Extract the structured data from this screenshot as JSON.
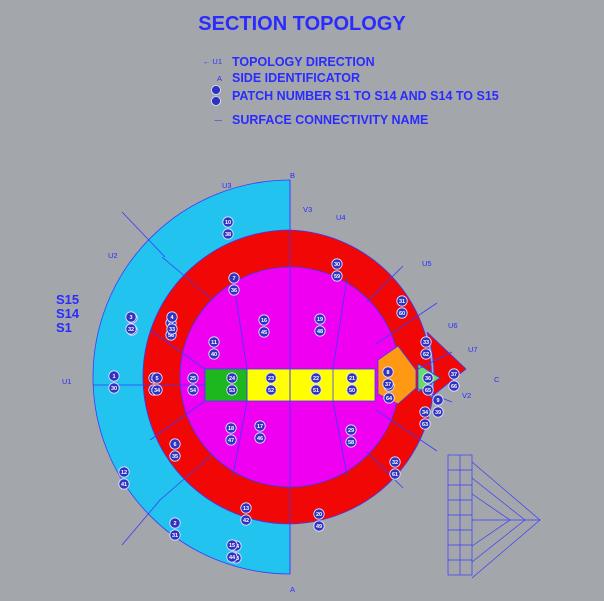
{
  "title": "SECTION TOPOLOGY",
  "legend": [
    {
      "symbol": "← U1",
      "text": "TOPOLOGY DIRECTION"
    },
    {
      "symbol": "A",
      "text": "SIDE IDENTIFICATOR"
    },
    {
      "symbol": "①",
      "text": "PATCH NUMBER S1 TO S14 AND S14 TO S15"
    },
    {
      "symbol": "—",
      "text": "SURFACE CONNECTIVITY NAME"
    }
  ],
  "surfaces": [
    "S15",
    "S14",
    "S1"
  ],
  "sides": {
    "top": "B",
    "bottom": "A",
    "right": "C"
  },
  "directions": [
    "U1",
    "U2",
    "U3",
    "V3",
    "U4",
    "U5",
    "U6",
    "U7",
    "V2"
  ],
  "colors": {
    "background": "#a3a7ab",
    "outer_ring": "#23c3ef",
    "middle_ring": "#f20707",
    "core": "#f000f0",
    "center_yellow": "#ffff00",
    "center_green": "#1db81d",
    "wedge_orange": "#ff9914",
    "wedge_tip": "#66dd66",
    "lines": "#3a3aff"
  },
  "patches": [
    {
      "id": "p1",
      "top": "1",
      "bot": "30"
    },
    {
      "id": "p2",
      "top": "10",
      "bot": "38"
    },
    {
      "id": "p3",
      "top": "11",
      "bot": "40"
    },
    {
      "id": "p4",
      "top": "12",
      "bot": "41"
    },
    {
      "id": "p5",
      "top": "13",
      "bot": "42"
    },
    {
      "id": "p6",
      "top": "14",
      "bot": "43"
    },
    {
      "id": "p7",
      "top": "15",
      "bot": "44"
    },
    {
      "id": "p8",
      "top": "16",
      "bot": "45"
    },
    {
      "id": "p9",
      "top": "17",
      "bot": "46"
    },
    {
      "id": "p10",
      "top": "18",
      "bot": "47"
    },
    {
      "id": "p11",
      "top": "19",
      "bot": "48"
    },
    {
      "id": "p12",
      "top": "20",
      "bot": "49"
    },
    {
      "id": "p13",
      "top": "21",
      "bot": "50"
    },
    {
      "id": "p14",
      "top": "22",
      "bot": "51"
    },
    {
      "id": "p15",
      "top": "23",
      "bot": "52"
    },
    {
      "id": "p16",
      "top": "24",
      "bot": "53"
    },
    {
      "id": "p17",
      "top": "25",
      "bot": "54"
    },
    {
      "id": "p18",
      "top": "26",
      "bot": "55"
    },
    {
      "id": "p19",
      "top": "27",
      "bot": "56"
    },
    {
      "id": "p20",
      "top": "28",
      "bot": "57"
    },
    {
      "id": "p21",
      "top": "29",
      "bot": "58"
    },
    {
      "id": "p22",
      "top": "30",
      "bot": "59"
    },
    {
      "id": "p23",
      "top": "31",
      "bot": "60"
    },
    {
      "id": "p24",
      "top": "32",
      "bot": "61"
    },
    {
      "id": "p25",
      "top": "33",
      "bot": "62"
    },
    {
      "id": "p26",
      "top": "34",
      "bot": "63"
    },
    {
      "id": "p27",
      "top": "35",
      "bot": "64"
    },
    {
      "id": "p28",
      "top": "36",
      "bot": "65"
    },
    {
      "id": "p29",
      "top": "37",
      "bot": "66"
    },
    {
      "id": "p30",
      "top": "2",
      "bot": "31"
    },
    {
      "id": "p31",
      "top": "3",
      "bot": "32"
    },
    {
      "id": "p32",
      "top": "4",
      "bot": "33"
    },
    {
      "id": "p33",
      "top": "5",
      "bot": "34"
    },
    {
      "id": "p34",
      "top": "6",
      "bot": "35"
    },
    {
      "id": "p35",
      "top": "7",
      "bot": "36"
    },
    {
      "id": "p36",
      "top": "8",
      "bot": "37"
    },
    {
      "id": "p37",
      "top": "9",
      "bot": "39"
    }
  ]
}
